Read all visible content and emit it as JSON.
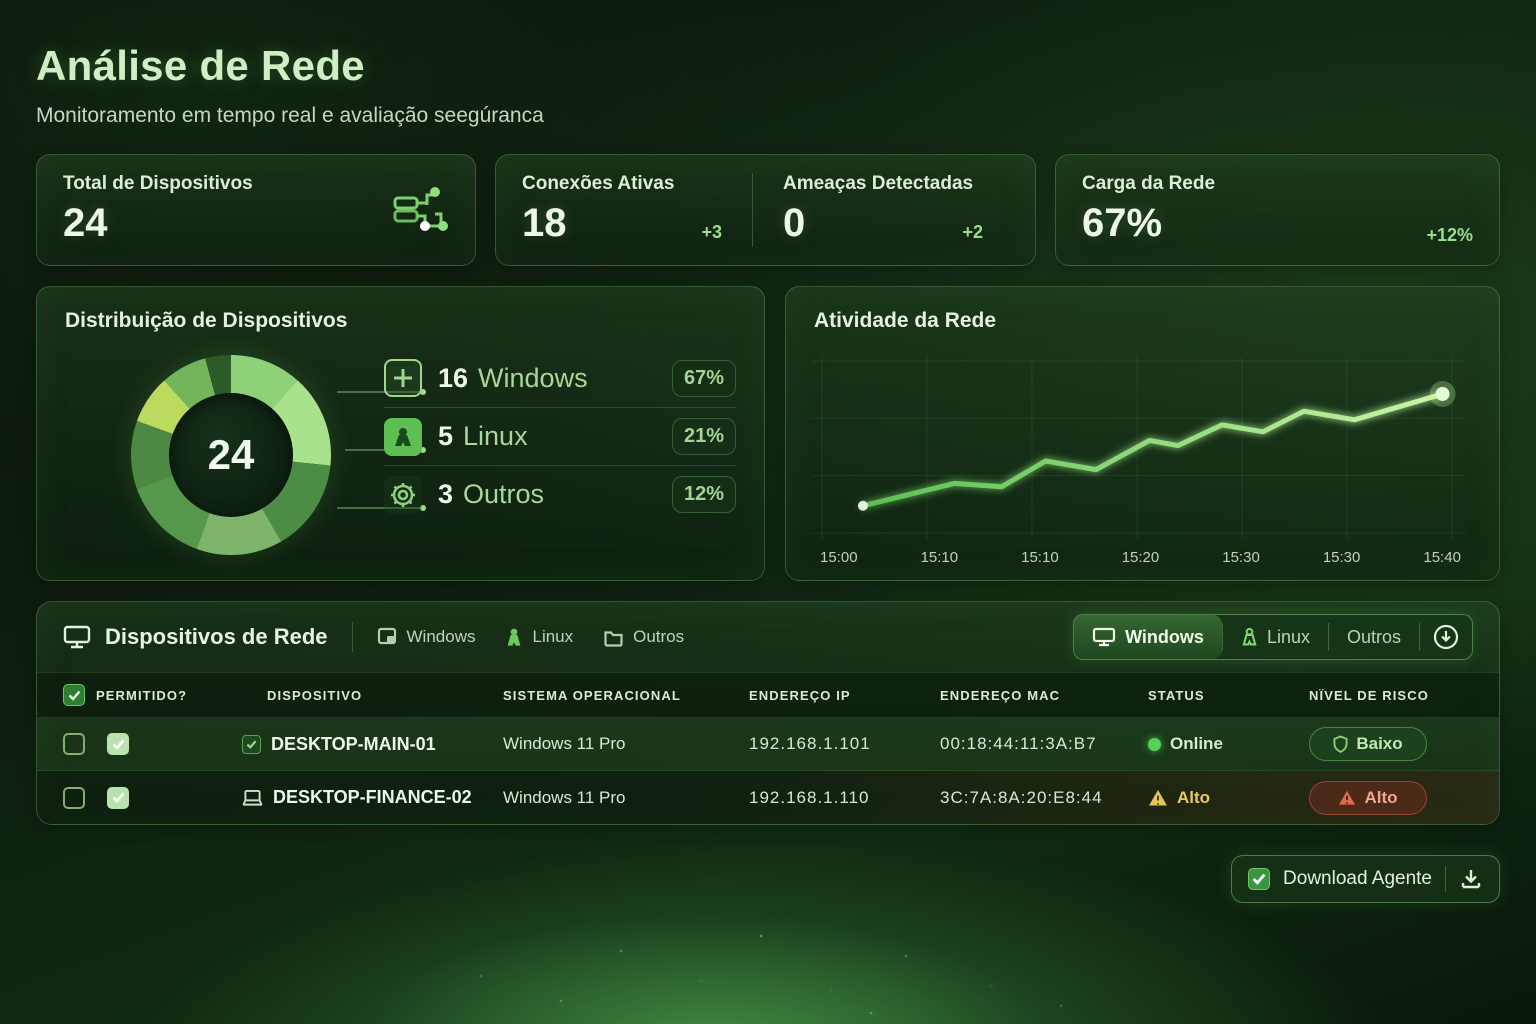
{
  "header": {
    "title": "Análise de Rede",
    "subtitle": "Monitoramento em tempo real e avaliação seegúranca"
  },
  "stats": {
    "total": {
      "label": "Total de Dispositivos",
      "value": "24"
    },
    "connections": {
      "label": "Conexões Ativas",
      "value": "18",
      "delta": "+3"
    },
    "threats": {
      "label": "Ameaças Detectadas",
      "value": "0",
      "delta": "+2"
    },
    "load": {
      "label": "Carga da Rede",
      "value": "67%",
      "delta": "+12%"
    }
  },
  "distribution": {
    "title": "Distribuição de Dispositivos",
    "center_value": "24",
    "items": [
      {
        "count": "16",
        "name": "Windows",
        "pct": "67%",
        "icon": "windows-icon"
      },
      {
        "count": "5",
        "name": "Linux",
        "pct": "21%",
        "icon": "linux-icon"
      },
      {
        "count": "3",
        "name": "Outros",
        "pct": "12%",
        "icon": "gear-icon"
      }
    ]
  },
  "activity": {
    "title": "Atividade da Rede"
  },
  "chart_data": [
    {
      "type": "pie",
      "title": "Distribuição de Dispositivos",
      "categories": [
        "Windows",
        "Linux",
        "Outros"
      ],
      "values": [
        16,
        5,
        3
      ],
      "percent_labels": [
        "67%",
        "21%",
        "12%"
      ],
      "center_label": "24",
      "band_stops": [
        [
          "#8fd178",
          0,
          42
        ],
        [
          "#a9e28d",
          42,
          96
        ],
        [
          "#4c8c44",
          96,
          150
        ],
        [
          "#7fb56a",
          150,
          200
        ],
        [
          "#55984b",
          200,
          250
        ],
        [
          "#4d8945",
          250,
          290
        ],
        [
          "#bcdb5e",
          290,
          318
        ],
        [
          "#74b55c",
          318,
          345
        ],
        [
          "#2d5a29",
          345,
          360
        ]
      ]
    },
    {
      "type": "line",
      "title": "Atividade da Rede",
      "x_tick_labels": [
        "15:00",
        "15:10",
        "15:10",
        "15:20",
        "15:30",
        "15:30",
        "15:40"
      ],
      "ylim": [
        0,
        100
      ],
      "grid": true,
      "line_color_start": "#5cbf52",
      "line_color_end": "#c9f6a6",
      "points": [
        [
          0.065,
          17
        ],
        [
          0.21,
          30
        ],
        [
          0.285,
          28
        ],
        [
          0.355,
          43
        ],
        [
          0.435,
          38
        ],
        [
          0.52,
          55
        ],
        [
          0.565,
          52
        ],
        [
          0.635,
          64
        ],
        [
          0.7,
          60
        ],
        [
          0.765,
          72
        ],
        [
          0.845,
          67
        ],
        [
          0.985,
          82
        ]
      ]
    }
  ],
  "devices": {
    "section_title": "Dispositivos de Rede",
    "filters": [
      "Windows",
      "Linux",
      "Outros"
    ],
    "tabs": {
      "items": [
        "Windows",
        "Linux",
        "Outros"
      ],
      "active": "Windows"
    },
    "columns": [
      "PERMITIDO?",
      "DISPOSITIVO",
      "SISTEMA OPERACIONAL",
      "ENDEREÇO IP",
      "ENDEREÇO MAC",
      "STATUS",
      "NÏVEL DE RISCO"
    ],
    "rows": [
      {
        "name": "DESKTOP-MAIN-01",
        "os": "Windows 11 Pro",
        "ip": "192.168.1.101",
        "mac": "00:18:44:11:3A:B7",
        "status": "Online",
        "risk": "Baixo"
      },
      {
        "name": "DESKTOP-FINANCE-02",
        "os": "Windows 11 Pro",
        "ip": "192.168.1.110",
        "mac": "3C:7A:8A:20:E8:44",
        "status": "Alto",
        "risk": "Alto"
      }
    ]
  },
  "footer": {
    "download_label": "Download Agente"
  },
  "colors": {
    "accent": "#7ddf70",
    "title": "#cfeec3",
    "online": "#57d156",
    "warning": "#ecc95e",
    "danger": "#e06a50",
    "badge_text": "#a4d494"
  }
}
